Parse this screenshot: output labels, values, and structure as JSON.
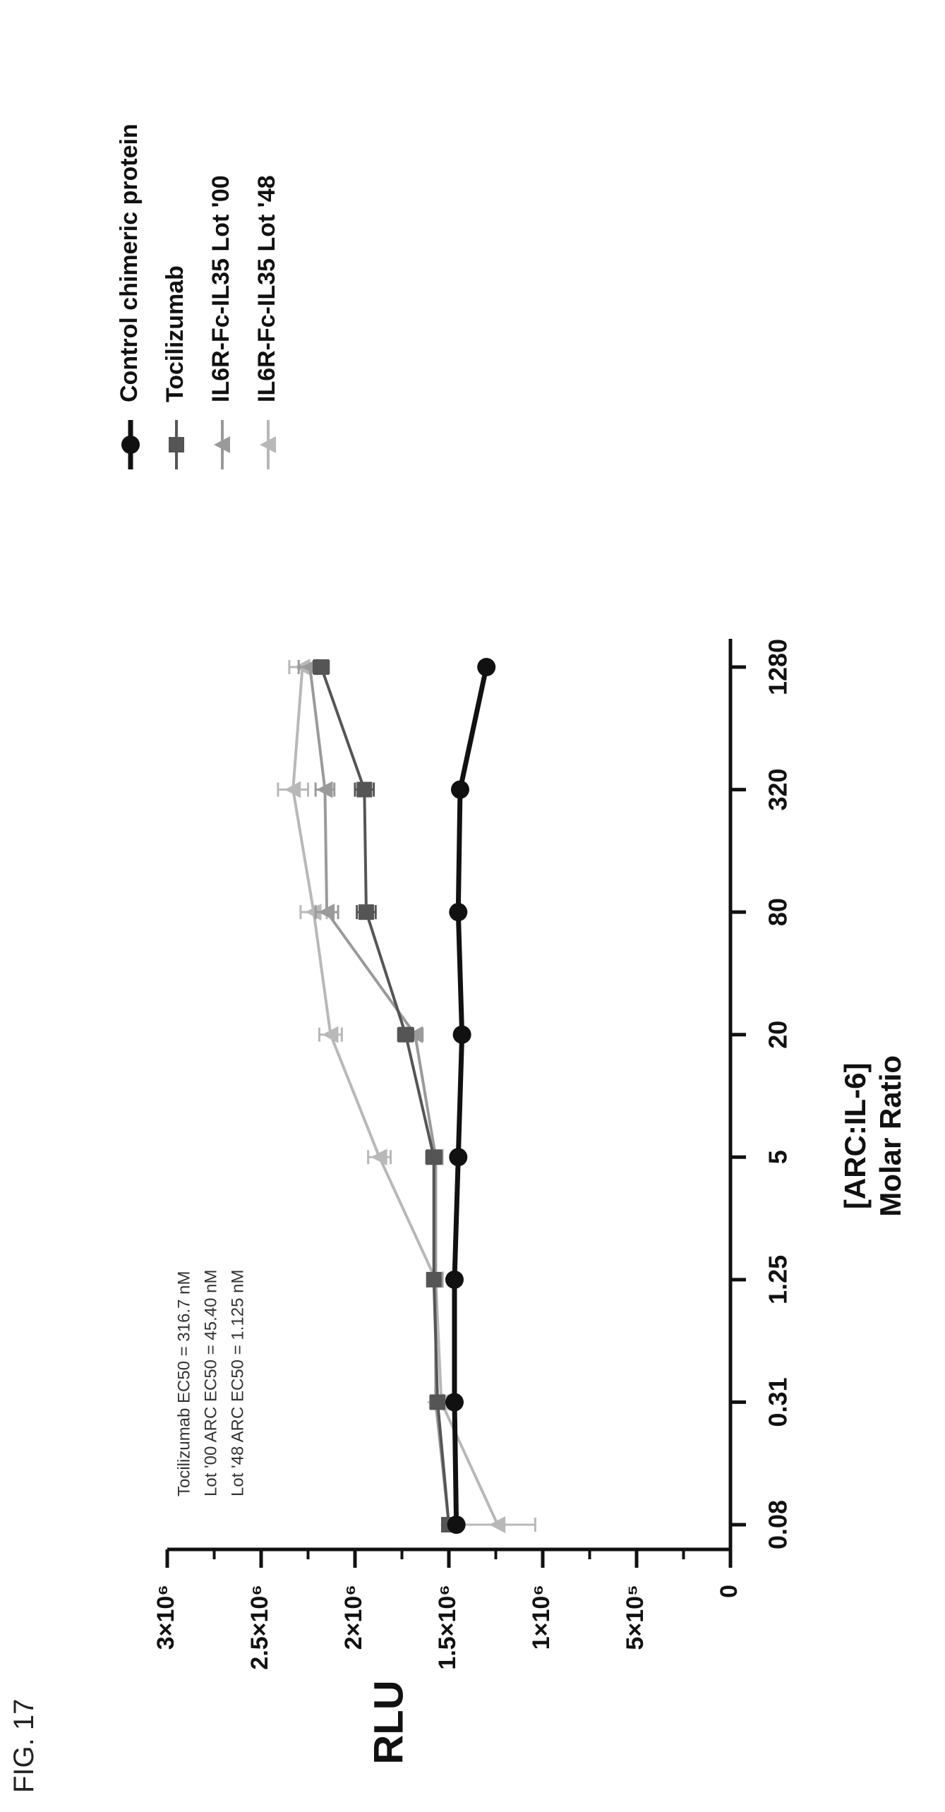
{
  "figure_label": "FIG. 17",
  "chart_data": {
    "type": "line",
    "title": "",
    "xlabel_line1": "[ARC:IL-6]",
    "xlabel_line2": "Molar Ratio",
    "ylabel": "RLU",
    "categories": [
      "0.08",
      "0.31",
      "1.25",
      "5",
      "20",
      "80",
      "320",
      "1280"
    ],
    "y_ticks": [
      {
        "value": 0,
        "label": "0"
      },
      {
        "value": 500000,
        "label": "5×10⁵"
      },
      {
        "value": 1000000,
        "label": "1×10⁶"
      },
      {
        "value": 1500000,
        "label": "1.5×10⁶"
      },
      {
        "value": 2000000,
        "label": "2×10⁶"
      },
      {
        "value": 2500000,
        "label": "2.5×10⁶"
      },
      {
        "value": 3000000,
        "label": "3×10⁶"
      }
    ],
    "ylim": [
      0,
      3000000
    ],
    "annotations": [
      "Tocilizumab EC50 = 316.7 nM",
      "Lot '00 ARC EC50 = 45.40 nM",
      "Lot '48 ARC EC50 = 1.125 nM"
    ],
    "series": [
      {
        "name": "Control chimeric protein",
        "color": "#111111",
        "marker": "circle",
        "values": [
          1460000,
          1470000,
          1470000,
          1450000,
          1430000,
          1450000,
          1440000,
          1300000
        ],
        "errors": [
          0,
          0,
          0,
          0,
          0,
          0,
          0,
          0
        ]
      },
      {
        "name": "Tocilizumab",
        "color": "#555555",
        "marker": "square",
        "values": [
          1500000,
          1560000,
          1580000,
          1580000,
          1730000,
          1940000,
          1950000,
          2180000
        ],
        "errors": [
          30000,
          30000,
          30000,
          40000,
          40000,
          50000,
          50000,
          40000
        ]
      },
      {
        "name": "IL6R-Fc-IL35 Lot '00",
        "color": "#9a9a9a",
        "marker": "triangle",
        "values": [
          1500000,
          1570000,
          1570000,
          1570000,
          1680000,
          2150000,
          2160000,
          2240000
        ],
        "errors": [
          30000,
          30000,
          30000,
          30000,
          40000,
          60000,
          50000,
          60000
        ]
      },
      {
        "name": "IL6R-Fc-IL35 Lot '48",
        "color": "#b8b8b8",
        "marker": "triangle",
        "values": [
          1240000,
          1540000,
          1570000,
          1870000,
          2130000,
          2220000,
          2330000,
          2280000
        ],
        "errors": [
          200000,
          30000,
          30000,
          60000,
          60000,
          70000,
          80000,
          70000
        ]
      }
    ],
    "legend_position": "right"
  }
}
